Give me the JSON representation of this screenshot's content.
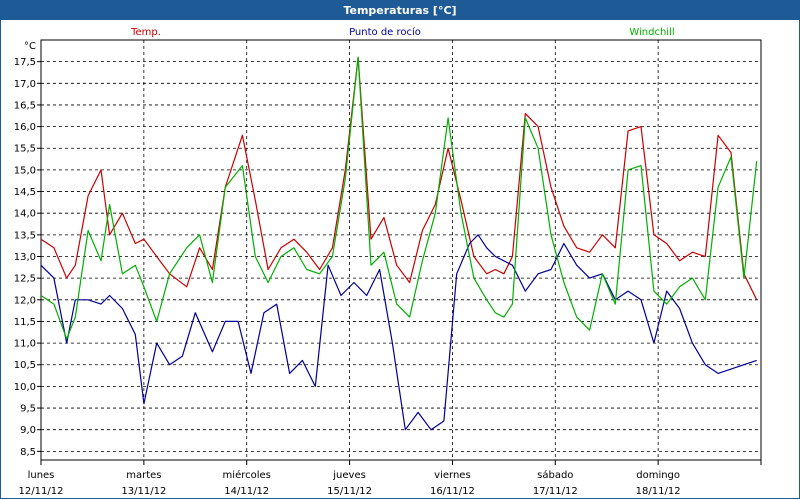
{
  "window": {
    "title": "Temperaturas [°C]"
  },
  "chart_data": {
    "type": "line",
    "title": "Temperaturas [°C]",
    "ylabel": "°C",
    "ylim": [
      8.3,
      18.0
    ],
    "yticks": [
      "8,5",
      "9,0",
      "9,5",
      "10,0",
      "10,5",
      "11,0",
      "11,5",
      "12,0",
      "12,5",
      "13,0",
      "13,5",
      "14,0",
      "14,5",
      "15,0",
      "15,5",
      "16,0",
      "16,5",
      "17,0",
      "17,5"
    ],
    "x_days": [
      {
        "day": "lunes",
        "date": "12/11/12"
      },
      {
        "day": "martes",
        "date": "13/11/12"
      },
      {
        "day": "miércoles",
        "date": "14/11/12"
      },
      {
        "day": "jueves",
        "date": "15/11/12"
      },
      {
        "day": "viernes",
        "date": "16/11/12"
      },
      {
        "day": "sábado",
        "date": "17/11/12"
      },
      {
        "day": "domingo",
        "date": "18/11/12"
      }
    ],
    "x_unit": "hours",
    "xlim": [
      0,
      168
    ],
    "grid": true,
    "legend_position": "top",
    "series": [
      {
        "name": "Temp.",
        "color": "#cc0000",
        "x": [
          0,
          3,
          6,
          8,
          11,
          14,
          16,
          19,
          22,
          24,
          27,
          30,
          34,
          37,
          40,
          43,
          47,
          50,
          53,
          56,
          59,
          62,
          65,
          68,
          71,
          74,
          77,
          80,
          83,
          86,
          89,
          92,
          95,
          98,
          101,
          104,
          106,
          108,
          110,
          113,
          116,
          119,
          122,
          125,
          128,
          131,
          134,
          137,
          140,
          143,
          146,
          149,
          152,
          155,
          158,
          161,
          164,
          167
        ],
        "y": [
          13.4,
          13.2,
          12.5,
          12.8,
          14.4,
          15.0,
          13.5,
          14.0,
          13.3,
          13.4,
          13.0,
          12.6,
          12.3,
          13.2,
          12.7,
          14.6,
          15.8,
          14.3,
          12.7,
          13.2,
          13.4,
          13.1,
          12.7,
          13.2,
          15.0,
          17.6,
          13.4,
          13.9,
          12.8,
          12.4,
          13.6,
          14.2,
          15.5,
          14.3,
          13.0,
          12.6,
          12.7,
          12.6,
          13.0,
          16.3,
          16.0,
          14.6,
          13.7,
          13.2,
          13.1,
          13.5,
          13.2,
          15.9,
          16.0,
          13.5,
          13.3,
          12.9,
          13.1,
          13.0,
          15.8,
          15.4,
          12.6,
          12.0
        ]
      },
      {
        "name": "Punto de rocío",
        "color": "#000099",
        "x": [
          0,
          3,
          6,
          8,
          11,
          14,
          16,
          19,
          22,
          24,
          27,
          30,
          33,
          36,
          40,
          43,
          46,
          49,
          52,
          55,
          58,
          61,
          64,
          67,
          70,
          73,
          76,
          79,
          82,
          85,
          88,
          91,
          94,
          97,
          100,
          102,
          104,
          106,
          108,
          110,
          113,
          116,
          119,
          122,
          125,
          128,
          131,
          134,
          137,
          140,
          143,
          146,
          149,
          152,
          155,
          158,
          161,
          164,
          167
        ],
        "y": [
          12.8,
          12.5,
          11.0,
          12.0,
          12.0,
          11.9,
          12.1,
          11.8,
          11.2,
          9.6,
          11.0,
          10.5,
          10.7,
          11.7,
          10.8,
          11.5,
          11.5,
          10.3,
          11.7,
          11.9,
          10.3,
          10.6,
          10.0,
          12.8,
          12.1,
          12.4,
          12.1,
          12.7,
          11.0,
          9.0,
          9.4,
          9.0,
          9.2,
          12.6,
          13.3,
          13.5,
          13.2,
          13.0,
          12.9,
          12.8,
          12.2,
          12.6,
          12.7,
          13.3,
          12.8,
          12.5,
          12.6,
          12.0,
          12.2,
          12.0,
          11.0,
          12.2,
          11.8,
          11.0,
          10.5,
          10.3,
          10.4,
          10.5,
          10.6
        ]
      },
      {
        "name": "Windchill",
        "color": "#00b000",
        "x": [
          0,
          3,
          6,
          8,
          11,
          14,
          16,
          19,
          22,
          24,
          27,
          30,
          34,
          37,
          40,
          43,
          47,
          50,
          53,
          56,
          59,
          62,
          65,
          68,
          71,
          74,
          77,
          80,
          83,
          86,
          89,
          92,
          95,
          98,
          101,
          104,
          106,
          108,
          110,
          113,
          116,
          119,
          122,
          125,
          128,
          131,
          134,
          137,
          140,
          143,
          146,
          149,
          152,
          155,
          158,
          161,
          164,
          167
        ],
        "y": [
          12.1,
          11.9,
          11.1,
          11.6,
          13.6,
          12.9,
          14.2,
          12.6,
          12.8,
          12.3,
          11.5,
          12.6,
          13.2,
          13.5,
          12.4,
          14.6,
          15.1,
          13.0,
          12.4,
          13.0,
          13.2,
          12.7,
          12.6,
          13.0,
          14.8,
          17.6,
          12.8,
          13.1,
          11.9,
          11.6,
          12.9,
          14.0,
          16.2,
          14.0,
          12.5,
          12.0,
          11.7,
          11.6,
          11.9,
          16.2,
          15.5,
          13.5,
          12.4,
          11.6,
          11.3,
          12.6,
          11.9,
          15.0,
          15.1,
          12.2,
          11.9,
          12.3,
          12.5,
          12.0,
          14.6,
          15.3,
          12.5,
          15.2
        ]
      }
    ]
  }
}
